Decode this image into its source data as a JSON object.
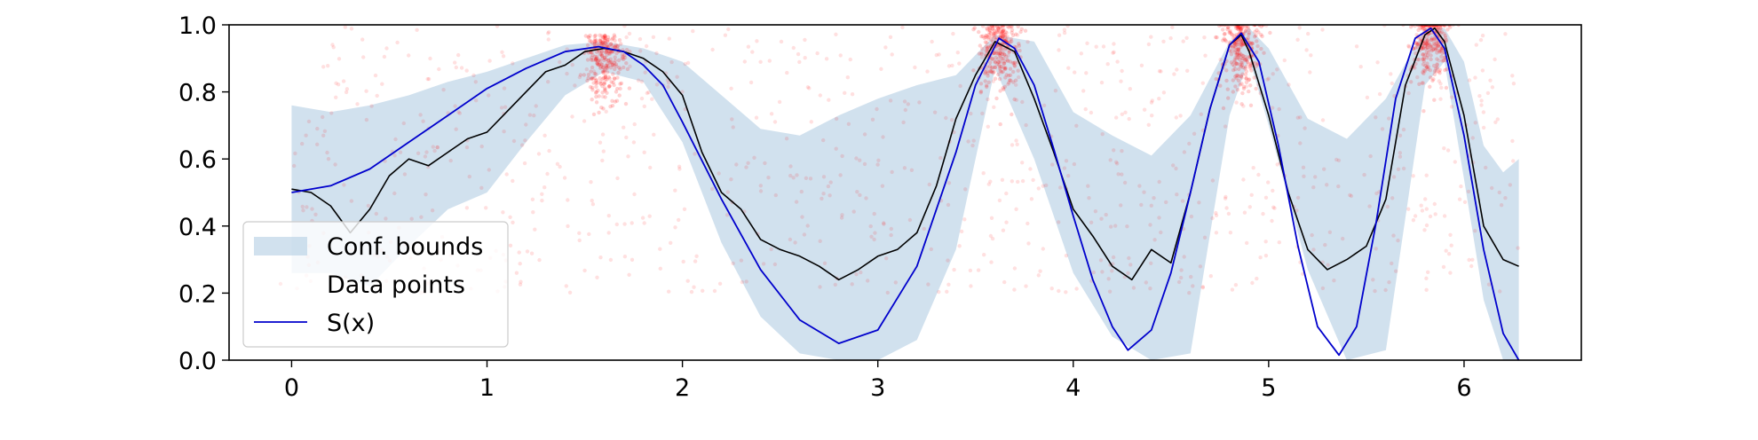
{
  "chart_data": {
    "type": "line",
    "title": "",
    "xlabel": "",
    "ylabel": "",
    "xlim": [
      -0.32,
      6.6
    ],
    "ylim": [
      0.0,
      1.0
    ],
    "grid": false,
    "legend_position": "lower-left",
    "x_ticks": [
      0,
      1,
      2,
      3,
      4,
      5,
      6
    ],
    "x_tick_labels": [
      "0",
      "1",
      "2",
      "3",
      "4",
      "5",
      "6"
    ],
    "y_ticks": [
      0.0,
      0.2,
      0.4,
      0.6,
      0.8,
      1.0
    ],
    "y_tick_labels": [
      "0.0",
      "0.2",
      "0.4",
      "0.6",
      "0.8",
      "1.0"
    ],
    "legend": [
      {
        "label": "Conf. bounds",
        "kind": "band",
        "color": "#b3cde3"
      },
      {
        "label": "Data points",
        "kind": "points",
        "color": "#ff0000"
      },
      {
        "label": "S(x)",
        "kind": "line",
        "color": "#0000cc"
      }
    ],
    "series": [
      {
        "name": "S(x)",
        "color": "#0000cc",
        "x": [
          0,
          0.2,
          0.4,
          0.6,
          0.8,
          1.0,
          1.2,
          1.4,
          1.57,
          1.7,
          1.8,
          1.9,
          2.0,
          2.2,
          2.4,
          2.6,
          2.8,
          3.0,
          3.2,
          3.4,
          3.5,
          3.62,
          3.7,
          3.8,
          3.9,
          4.0,
          4.1,
          4.2,
          4.28,
          4.4,
          4.5,
          4.6,
          4.7,
          4.8,
          4.86,
          4.95,
          5.05,
          5.15,
          5.25,
          5.36,
          5.45,
          5.55,
          5.65,
          5.75,
          5.83,
          5.9,
          6.0,
          6.1,
          6.2,
          6.28
        ],
        "y": [
          0.5,
          0.52,
          0.57,
          0.65,
          0.73,
          0.81,
          0.87,
          0.92,
          0.935,
          0.92,
          0.88,
          0.82,
          0.71,
          0.48,
          0.27,
          0.12,
          0.05,
          0.09,
          0.28,
          0.62,
          0.82,
          0.96,
          0.93,
          0.82,
          0.63,
          0.43,
          0.24,
          0.1,
          0.03,
          0.09,
          0.26,
          0.5,
          0.75,
          0.94,
          0.975,
          0.89,
          0.64,
          0.34,
          0.1,
          0.015,
          0.1,
          0.41,
          0.78,
          0.96,
          0.99,
          0.93,
          0.67,
          0.33,
          0.08,
          0.0
        ]
      },
      {
        "name": "",
        "color": "#000000",
        "x": [
          0,
          0.1,
          0.2,
          0.3,
          0.4,
          0.5,
          0.6,
          0.7,
          0.8,
          0.9,
          1.0,
          1.1,
          1.2,
          1.3,
          1.4,
          1.5,
          1.6,
          1.7,
          1.8,
          1.9,
          2.0,
          2.1,
          2.2,
          2.3,
          2.4,
          2.5,
          2.6,
          2.7,
          2.8,
          2.9,
          3.0,
          3.1,
          3.2,
          3.3,
          3.4,
          3.5,
          3.6,
          3.7,
          3.8,
          3.9,
          4.0,
          4.1,
          4.2,
          4.3,
          4.4,
          4.5,
          4.6,
          4.7,
          4.8,
          4.86,
          4.9,
          5.0,
          5.1,
          5.2,
          5.3,
          5.4,
          5.5,
          5.6,
          5.7,
          5.8,
          5.85,
          5.9,
          6.0,
          6.1,
          6.2,
          6.28
        ],
        "y": [
          0.51,
          0.5,
          0.46,
          0.38,
          0.45,
          0.55,
          0.6,
          0.58,
          0.62,
          0.66,
          0.68,
          0.74,
          0.8,
          0.86,
          0.88,
          0.92,
          0.93,
          0.92,
          0.9,
          0.86,
          0.79,
          0.62,
          0.5,
          0.45,
          0.36,
          0.33,
          0.31,
          0.28,
          0.24,
          0.27,
          0.31,
          0.33,
          0.38,
          0.52,
          0.72,
          0.85,
          0.95,
          0.92,
          0.78,
          0.62,
          0.45,
          0.37,
          0.28,
          0.24,
          0.33,
          0.29,
          0.5,
          0.75,
          0.94,
          0.97,
          0.92,
          0.73,
          0.5,
          0.33,
          0.27,
          0.3,
          0.34,
          0.48,
          0.82,
          0.97,
          0.99,
          0.95,
          0.73,
          0.4,
          0.3,
          0.28
        ]
      }
    ],
    "band": {
      "name": "Conf. bounds",
      "color": "#b3cde3",
      "x": [
        0,
        0.2,
        0.4,
        0.6,
        0.8,
        1.0,
        1.2,
        1.4,
        1.6,
        1.8,
        2.0,
        2.2,
        2.4,
        2.6,
        2.8,
        3.0,
        3.2,
        3.4,
        3.6,
        3.8,
        4.0,
        4.2,
        4.4,
        4.6,
        4.8,
        4.9,
        5.0,
        5.2,
        5.4,
        5.6,
        5.8,
        5.9,
        6.0,
        6.1,
        6.2,
        6.28
      ],
      "upper": [
        0.76,
        0.74,
        0.76,
        0.79,
        0.83,
        0.86,
        0.9,
        0.94,
        0.95,
        0.93,
        0.89,
        0.79,
        0.69,
        0.67,
        0.73,
        0.78,
        0.82,
        0.85,
        0.97,
        0.95,
        0.74,
        0.67,
        0.61,
        0.73,
        0.95,
        0.99,
        0.93,
        0.72,
        0.66,
        0.78,
        0.99,
        0.99,
        0.89,
        0.64,
        0.56,
        0.6
      ],
      "lower": [
        0.26,
        0.26,
        0.22,
        0.34,
        0.45,
        0.5,
        0.65,
        0.79,
        0.86,
        0.83,
        0.65,
        0.35,
        0.13,
        0.02,
        0.0,
        0.0,
        0.06,
        0.33,
        0.87,
        0.6,
        0.26,
        0.07,
        0.0,
        0.02,
        0.73,
        0.9,
        0.7,
        0.27,
        0.0,
        0.03,
        0.82,
        0.89,
        0.54,
        0.18,
        0.0,
        0.0
      ]
    },
    "scatter_clusters": [
      {
        "x": 1.6,
        "y_center": 0.93
      },
      {
        "x": 3.62,
        "y_center": 0.96
      },
      {
        "x": 4.86,
        "y_center": 0.97
      },
      {
        "x": 5.83,
        "y_center": 0.99
      }
    ],
    "scatter_color": "#ff0000"
  }
}
